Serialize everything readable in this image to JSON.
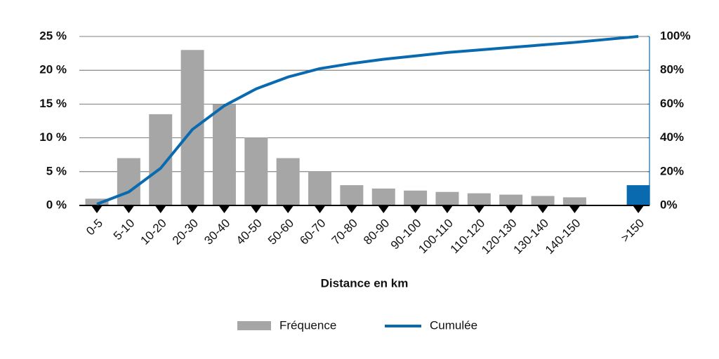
{
  "chart_data": {
    "type": "bar-line",
    "x_label": "Distance en km",
    "categories": [
      "0-5",
      "5-10",
      "10-20",
      "20-30",
      "30-40",
      "40-50",
      "50-60",
      "60-70",
      "70-80",
      "80-90",
      "90-100",
      "100-110",
      "110-120",
      "120-130",
      "130-140",
      "140-150",
      ">150"
    ],
    "series": [
      {
        "name": "Fréquence",
        "color": "#a6a6a6",
        "type": "bar",
        "bar_colors": [
          "#a6a6a6",
          "#a6a6a6",
          "#a6a6a6",
          "#a6a6a6",
          "#a6a6a6",
          "#a6a6a6",
          "#a6a6a6",
          "#a6a6a6",
          "#a6a6a6",
          "#a6a6a6",
          "#a6a6a6",
          "#a6a6a6",
          "#a6a6a6",
          "#a6a6a6",
          "#a6a6a6",
          "#a6a6a6",
          "#0a6ab0"
        ],
        "values": [
          1,
          7,
          13.5,
          23,
          15,
          10,
          7,
          5,
          3,
          2.5,
          2.2,
          2,
          1.8,
          1.6,
          1.4,
          1.2,
          3
        ]
      },
      {
        "name": "Cumulée",
        "color": "#0a6ab0",
        "type": "line",
        "axis": "y2",
        "values": [
          0.8,
          8,
          22,
          45,
          59,
          69,
          76,
          81,
          84,
          86.5,
          88.5,
          90.5,
          92,
          93.5,
          95,
          96.5,
          100
        ]
      }
    ],
    "ylim": [
      0,
      25
    ],
    "yticks": [
      {
        "value": 0,
        "label": "0 %"
      },
      {
        "value": 5,
        "label": "5 %"
      },
      {
        "value": 10,
        "label": "10 %"
      },
      {
        "value": 15,
        "label": "15 %"
      },
      {
        "value": 20,
        "label": "20 %"
      },
      {
        "value": 25,
        "label": "25 %"
      }
    ],
    "y2lim": [
      0,
      100
    ],
    "y2ticks": [
      {
        "value": 0,
        "label": "0%"
      },
      {
        "value": 20,
        "label": "20%"
      },
      {
        "value": 40,
        "label": "40%"
      },
      {
        "value": 60,
        "label": "60%"
      },
      {
        "value": 80,
        "label": "80%"
      },
      {
        "value": 100,
        "label": "100%"
      }
    ],
    "grid": true,
    "legend": "bottom"
  }
}
